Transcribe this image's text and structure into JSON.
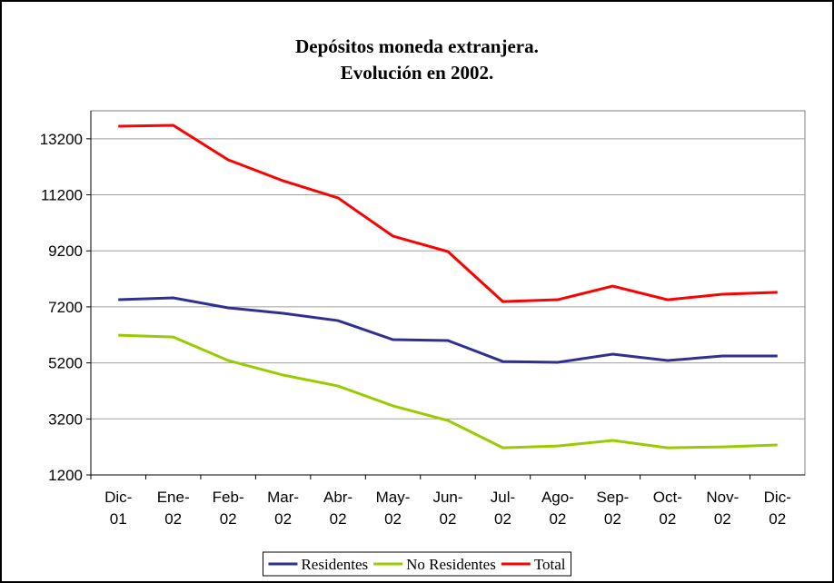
{
  "chart_data": {
    "type": "line",
    "title": [
      "Depósitos moneda extranjera.",
      "Evolución en 2002."
    ],
    "categories": [
      "Dic-01",
      "Ene-02",
      "Feb-02",
      "Mar-02",
      "Abr-02",
      "May-02",
      "Jun-02",
      "Jul-02",
      "Ago-02",
      "Sep-02",
      "Oct-02",
      "Nov-02",
      "Dic-02"
    ],
    "series": [
      {
        "name": "Residentes",
        "color": "#2e3192",
        "values": [
          7455,
          7520,
          7165,
          6970,
          6710,
          6030,
          6000,
          5250,
          5220,
          5510,
          5285,
          5445,
          5445
        ]
      },
      {
        "name": "No Residentes",
        "color": "#99cc00",
        "values": [
          6190,
          6125,
          5285,
          4765,
          4375,
          3665,
          3145,
          2170,
          2235,
          2430,
          2170,
          2200,
          2270
        ]
      },
      {
        "name": "Total",
        "color": "#ff0000",
        "values": [
          13650,
          13680,
          12450,
          11700,
          11090,
          9725,
          9175,
          7390,
          7455,
          7940,
          7455,
          7650,
          7720
        ]
      }
    ],
    "ylim": [
      1200,
      14200
    ],
    "yticks": [
      1200,
      3200,
      5200,
      7200,
      9200,
      11200,
      13200
    ],
    "grid": true,
    "legend": "bottom"
  }
}
